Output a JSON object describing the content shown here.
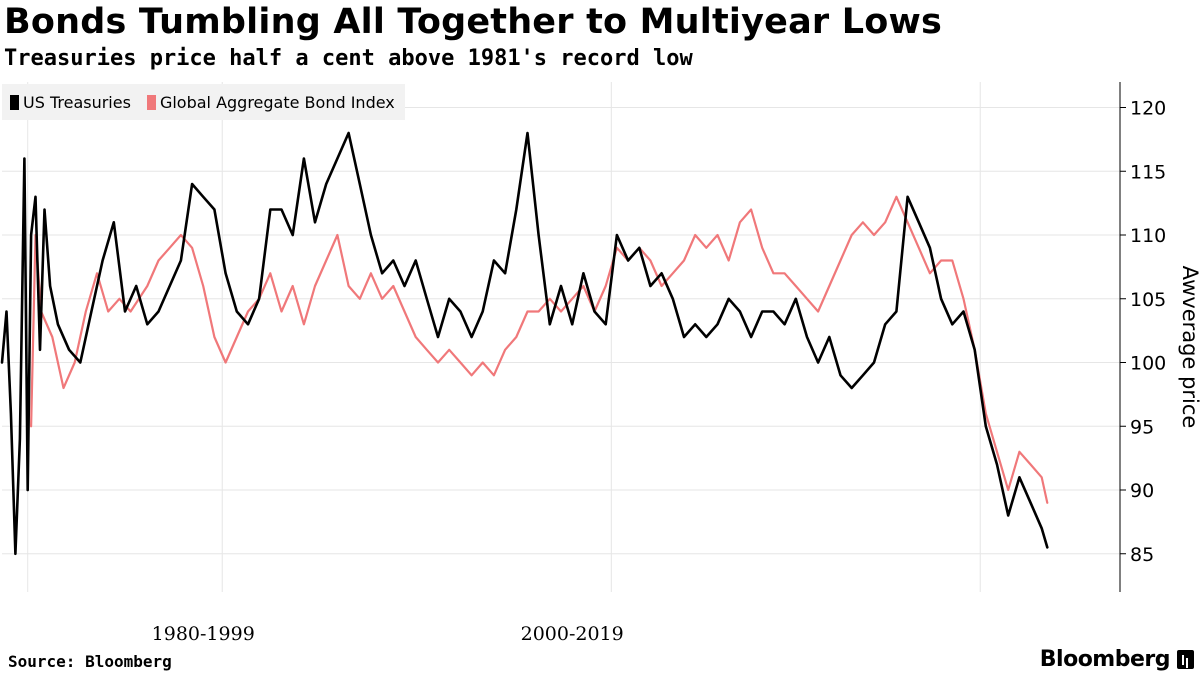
{
  "header": {
    "title": "Bonds Tumbling All Together to Multiyear Lows",
    "subtitle": "Treasuries price half a cent above 1981's record low"
  },
  "footer": {
    "source": "Source: Bloomberg",
    "brand": "Bloomberg"
  },
  "chart_data": {
    "type": "line",
    "title": "Bonds Tumbling All Together to Multiyear Lows",
    "subtitle": "Treasuries price half a cent above 1981's record low",
    "ylabel": "Awverage price",
    "xlabel": "",
    "ylim": [
      82,
      122
    ],
    "yticks": [
      85,
      90,
      95,
      100,
      105,
      110,
      115,
      120
    ],
    "xlim": [
      0,
      100
    ],
    "x_period_labels": [
      {
        "label": "1980-1999",
        "x": 18
      },
      {
        "label": "2000-2019",
        "x": 51
      }
    ],
    "x_separators": [
      2.3,
      19.7,
      54.5,
      87.5
    ],
    "legend_position": "top-left",
    "grid": true,
    "series": [
      {
        "name": "US Treasuries",
        "color": "#000000",
        "points": [
          [
            0,
            100
          ],
          [
            0.4,
            104
          ],
          [
            0.8,
            96
          ],
          [
            1.2,
            85
          ],
          [
            1.6,
            94
          ],
          [
            2.0,
            116
          ],
          [
            2.3,
            90
          ],
          [
            2.6,
            110
          ],
          [
            3.0,
            113
          ],
          [
            3.4,
            101
          ],
          [
            3.8,
            112
          ],
          [
            4.3,
            106
          ],
          [
            5,
            103
          ],
          [
            6,
            101
          ],
          [
            7,
            100
          ],
          [
            8,
            104
          ],
          [
            9,
            108
          ],
          [
            10,
            111
          ],
          [
            11,
            104
          ],
          [
            12,
            106
          ],
          [
            13,
            103
          ],
          [
            14,
            104
          ],
          [
            15,
            106
          ],
          [
            16,
            108
          ],
          [
            17,
            114
          ],
          [
            18,
            113
          ],
          [
            19,
            112
          ],
          [
            20,
            107
          ],
          [
            21,
            104
          ],
          [
            22,
            103
          ],
          [
            23,
            105
          ],
          [
            24,
            112
          ],
          [
            25,
            112
          ],
          [
            26,
            110
          ],
          [
            27,
            116
          ],
          [
            28,
            111
          ],
          [
            29,
            114
          ],
          [
            30,
            116
          ],
          [
            31,
            118
          ],
          [
            32,
            114
          ],
          [
            33,
            110
          ],
          [
            34,
            107
          ],
          [
            35,
            108
          ],
          [
            36,
            106
          ],
          [
            37,
            108
          ],
          [
            38,
            105
          ],
          [
            39,
            102
          ],
          [
            40,
            105
          ],
          [
            41,
            104
          ],
          [
            42,
            102
          ],
          [
            43,
            104
          ],
          [
            44,
            108
          ],
          [
            45,
            107
          ],
          [
            46,
            112
          ],
          [
            47,
            118
          ],
          [
            48,
            110
          ],
          [
            49,
            103
          ],
          [
            50,
            106
          ],
          [
            51,
            103
          ],
          [
            52,
            107
          ],
          [
            53,
            104
          ],
          [
            54,
            103
          ],
          [
            55,
            110
          ],
          [
            56,
            108
          ],
          [
            57,
            109
          ],
          [
            58,
            106
          ],
          [
            59,
            107
          ],
          [
            60,
            105
          ],
          [
            61,
            102
          ],
          [
            62,
            103
          ],
          [
            63,
            102
          ],
          [
            64,
            103
          ],
          [
            65,
            105
          ],
          [
            66,
            104
          ],
          [
            67,
            102
          ],
          [
            68,
            104
          ],
          [
            69,
            104
          ],
          [
            70,
            103
          ],
          [
            71,
            105
          ],
          [
            72,
            102
          ],
          [
            73,
            100
          ],
          [
            74,
            102
          ],
          [
            75,
            99
          ],
          [
            76,
            98
          ],
          [
            77,
            99
          ],
          [
            78,
            100
          ],
          [
            79,
            103
          ],
          [
            80,
            104
          ],
          [
            81,
            113
          ],
          [
            82,
            111
          ],
          [
            83,
            109
          ],
          [
            84,
            105
          ],
          [
            85,
            103
          ],
          [
            86,
            104
          ],
          [
            87,
            101
          ],
          [
            88,
            95
          ],
          [
            89,
            92
          ],
          [
            90,
            88
          ],
          [
            91,
            91
          ],
          [
            92,
            89
          ],
          [
            93,
            87
          ],
          [
            93.5,
            85.5
          ]
        ]
      },
      {
        "name": "Global Aggregate Bond Index",
        "color": "#f0787a",
        "points": [
          [
            2.6,
            95
          ],
          [
            3.0,
            110
          ],
          [
            3.5,
            104
          ],
          [
            4.5,
            102
          ],
          [
            5.5,
            98
          ],
          [
            6.5,
            100
          ],
          [
            7.5,
            104
          ],
          [
            8.5,
            107
          ],
          [
            9.5,
            104
          ],
          [
            10.5,
            105
          ],
          [
            11.5,
            104
          ],
          [
            13,
            106
          ],
          [
            14,
            108
          ],
          [
            15,
            109
          ],
          [
            16,
            110
          ],
          [
            17,
            109
          ],
          [
            18,
            106
          ],
          [
            19,
            102
          ],
          [
            20,
            100
          ],
          [
            21,
            102
          ],
          [
            22,
            104
          ],
          [
            23,
            105
          ],
          [
            24,
            107
          ],
          [
            25,
            104
          ],
          [
            26,
            106
          ],
          [
            27,
            103
          ],
          [
            28,
            106
          ],
          [
            29,
            108
          ],
          [
            30,
            110
          ],
          [
            31,
            106
          ],
          [
            32,
            105
          ],
          [
            33,
            107
          ],
          [
            34,
            105
          ],
          [
            35,
            106
          ],
          [
            36,
            104
          ],
          [
            37,
            102
          ],
          [
            38,
            101
          ],
          [
            39,
            100
          ],
          [
            40,
            101
          ],
          [
            41,
            100
          ],
          [
            42,
            99
          ],
          [
            43,
            100
          ],
          [
            44,
            99
          ],
          [
            45,
            101
          ],
          [
            46,
            102
          ],
          [
            47,
            104
          ],
          [
            48,
            104
          ],
          [
            49,
            105
          ],
          [
            50,
            104
          ],
          [
            51,
            105
          ],
          [
            52,
            106
          ],
          [
            53,
            104
          ],
          [
            54,
            106
          ],
          [
            55,
            109
          ],
          [
            56,
            108
          ],
          [
            57,
            109
          ],
          [
            58,
            108
          ],
          [
            59,
            106
          ],
          [
            60,
            107
          ],
          [
            61,
            108
          ],
          [
            62,
            110
          ],
          [
            63,
            109
          ],
          [
            64,
            110
          ],
          [
            65,
            108
          ],
          [
            66,
            111
          ],
          [
            67,
            112
          ],
          [
            68,
            109
          ],
          [
            69,
            107
          ],
          [
            70,
            107
          ],
          [
            71,
            106
          ],
          [
            72,
            105
          ],
          [
            73,
            104
          ],
          [
            74,
            106
          ],
          [
            75,
            108
          ],
          [
            76,
            110
          ],
          [
            77,
            111
          ],
          [
            78,
            110
          ],
          [
            79,
            111
          ],
          [
            80,
            113
          ],
          [
            81,
            111
          ],
          [
            82,
            109
          ],
          [
            83,
            107
          ],
          [
            84,
            108
          ],
          [
            85,
            108
          ],
          [
            86,
            105
          ],
          [
            87,
            101
          ],
          [
            88,
            96
          ],
          [
            89,
            93
          ],
          [
            90,
            90
          ],
          [
            91,
            93
          ],
          [
            92,
            92
          ],
          [
            93,
            91
          ],
          [
            93.5,
            89
          ]
        ]
      }
    ]
  }
}
